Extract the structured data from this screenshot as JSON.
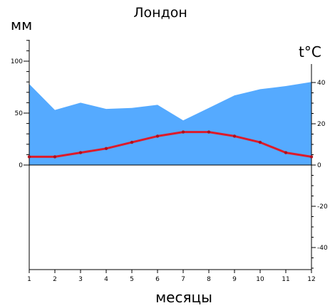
{
  "chart_data": {
    "type": "area",
    "title": "Лондон",
    "ylabel_left": "мм",
    "ylabel_right": "t°C",
    "xlabel": "месяцы",
    "x": [
      1,
      2,
      3,
      4,
      5,
      6,
      7,
      8,
      9,
      10,
      11,
      12
    ],
    "left_axis": {
      "ylim": [
        0,
        100
      ],
      "ticks": [
        0,
        50,
        100
      ]
    },
    "right_axis": {
      "ylim": [
        -50,
        40
      ],
      "ticks": [
        -40,
        -20,
        0,
        20,
        40
      ]
    },
    "series": [
      {
        "type": "area",
        "axis": "left",
        "values": [
          78,
          53,
          60,
          54,
          55,
          58,
          43,
          55,
          67,
          73,
          76,
          80
        ],
        "color": "#55aaff"
      },
      {
        "type": "line",
        "axis": "right",
        "values": [
          4,
          4,
          6,
          8,
          11,
          14,
          16,
          16,
          14,
          11,
          6,
          4
        ],
        "color": "#dd1b2a"
      }
    ],
    "grid": false
  }
}
